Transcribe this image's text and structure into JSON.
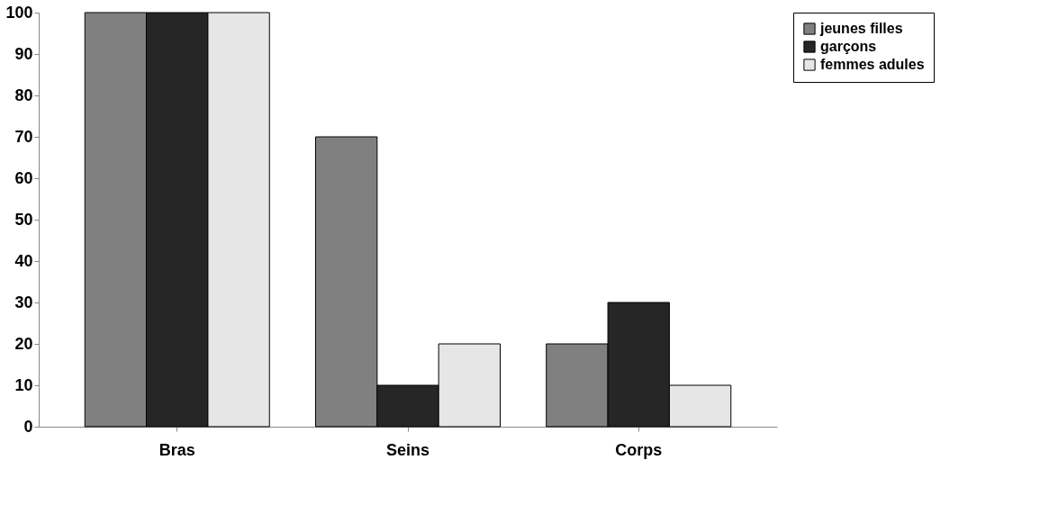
{
  "chart_data": {
    "type": "bar",
    "categories": [
      "Bras",
      "Seins",
      "Corps"
    ],
    "series": [
      {
        "name": "jeunes filles",
        "color": "#808080",
        "values": [
          100,
          70,
          20
        ]
      },
      {
        "name": "garçons",
        "color": "#262626",
        "values": [
          100,
          10,
          30
        ]
      },
      {
        "name": "femmes adules",
        "color": "#e6e6e6",
        "values": [
          100,
          20,
          10
        ]
      }
    ],
    "ylim": [
      0,
      100
    ],
    "yticks": [
      0,
      10,
      20,
      30,
      40,
      50,
      60,
      70,
      80,
      90,
      100
    ],
    "grid": false,
    "legend": "right"
  }
}
